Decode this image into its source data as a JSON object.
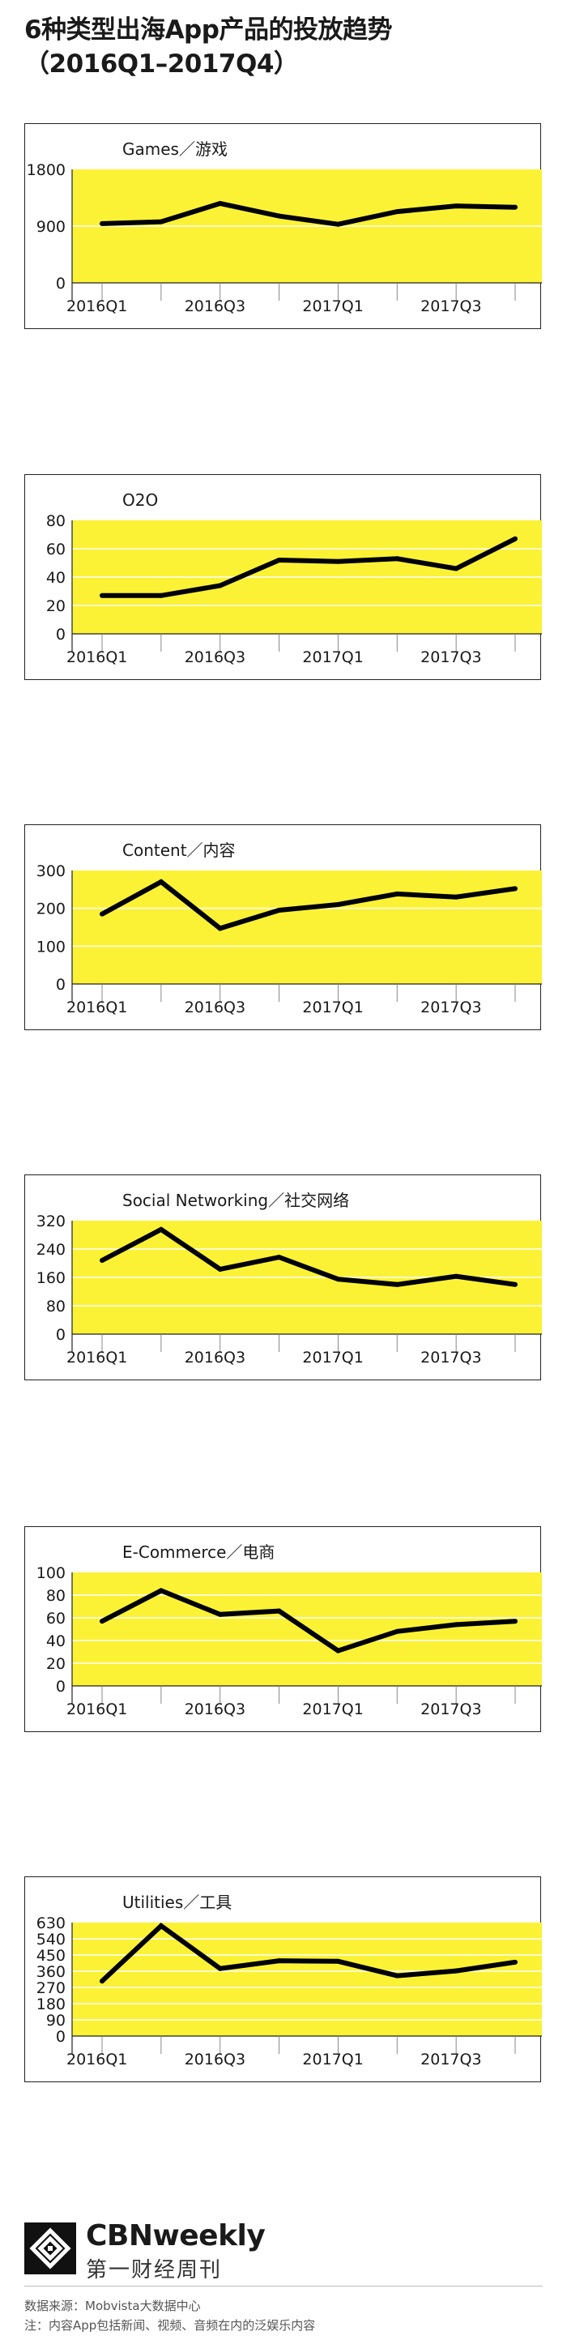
{
  "title": {
    "line1": "6种类型出海App产品的投放趋势",
    "line2": "（2016Q1–2017Q4）"
  },
  "colors": {
    "plot_bg": "#fbf235",
    "line": "#000000",
    "grid": "#ffffff"
  },
  "chart_data": [
    {
      "type": "line",
      "title": "Games／游戏",
      "x": [
        "2016Q1",
        "2016Q2",
        "2016Q3",
        "2016Q4",
        "2017Q1",
        "2017Q2",
        "2017Q3",
        "2017Q4"
      ],
      "x_tick_labels": [
        "2016Q1",
        "2016Q3",
        "2017Q1",
        "2017Q3"
      ],
      "values": [
        940,
        970,
        1260,
        1060,
        930,
        1130,
        1220,
        1200
      ],
      "ylim": [
        0,
        1800
      ],
      "yticks": [
        0,
        900,
        1800
      ],
      "grid": true
    },
    {
      "type": "line",
      "title": "O2O",
      "x": [
        "2016Q1",
        "2016Q2",
        "2016Q3",
        "2016Q4",
        "2017Q1",
        "2017Q2",
        "2017Q3",
        "2017Q4"
      ],
      "x_tick_labels": [
        "2016Q1",
        "2016Q3",
        "2017Q1",
        "2017Q3"
      ],
      "values": [
        27,
        27,
        34,
        52,
        51,
        53,
        46,
        67
      ],
      "ylim": [
        0,
        80
      ],
      "yticks": [
        0,
        20,
        40,
        60,
        80
      ],
      "grid": true
    },
    {
      "type": "line",
      "title": "Content／内容",
      "x": [
        "2016Q1",
        "2016Q2",
        "2016Q3",
        "2016Q4",
        "2017Q1",
        "2017Q2",
        "2017Q3",
        "2017Q4"
      ],
      "x_tick_labels": [
        "2016Q1",
        "2016Q3",
        "2017Q1",
        "2017Q3"
      ],
      "values": [
        185,
        270,
        147,
        195,
        210,
        238,
        230,
        252
      ],
      "ylim": [
        0,
        300
      ],
      "yticks": [
        0,
        100,
        200,
        300
      ],
      "grid": true
    },
    {
      "type": "line",
      "title": "Social Networking／社交网络",
      "x": [
        "2016Q1",
        "2016Q2",
        "2016Q3",
        "2016Q4",
        "2017Q1",
        "2017Q2",
        "2017Q3",
        "2017Q4"
      ],
      "x_tick_labels": [
        "2016Q1",
        "2016Q3",
        "2017Q1",
        "2017Q3"
      ],
      "values": [
        208,
        295,
        183,
        217,
        155,
        140,
        163,
        140
      ],
      "ylim": [
        0,
        320
      ],
      "yticks": [
        0,
        80,
        160,
        240,
        320
      ],
      "grid": true
    },
    {
      "type": "line",
      "title": "E-Commerce／电商",
      "x": [
        "2016Q1",
        "2016Q2",
        "2016Q3",
        "2016Q4",
        "2017Q1",
        "2017Q2",
        "2017Q3",
        "2017Q4"
      ],
      "x_tick_labels": [
        "2016Q1",
        "2016Q3",
        "2017Q1",
        "2017Q3"
      ],
      "values": [
        57,
        84,
        63,
        66,
        31,
        48,
        54,
        57
      ],
      "ylim": [
        0,
        100
      ],
      "yticks": [
        0,
        20,
        40,
        60,
        80,
        100
      ],
      "grid": true
    },
    {
      "type": "line",
      "title": "Utilities／工具",
      "x": [
        "2016Q1",
        "2016Q2",
        "2016Q3",
        "2016Q4",
        "2017Q1",
        "2017Q2",
        "2017Q3",
        "2017Q4"
      ],
      "x_tick_labels": [
        "2016Q1",
        "2016Q3",
        "2017Q1",
        "2017Q3"
      ],
      "values": [
        305,
        612,
        375,
        418,
        415,
        335,
        362,
        410
      ],
      "ylim": [
        0,
        630
      ],
      "yticks": [
        0,
        90,
        180,
        270,
        360,
        450,
        540,
        630
      ],
      "grid": true
    }
  ],
  "footer": {
    "brand": "CBNweekly",
    "brand_cn": "第一财经周刊",
    "source": "数据来源：Mobvista大数据中心",
    "note": "注：内容App包括新闻、视频、音频在内的泛娱乐内容"
  }
}
